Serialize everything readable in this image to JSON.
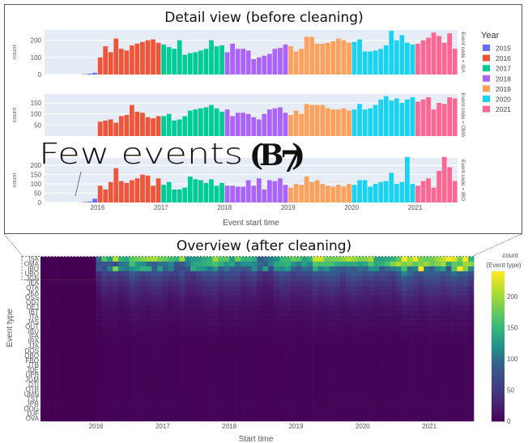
{
  "detail_title": "Detail view (before cleaning)",
  "overview_title": "Overview (after cleaning)",
  "annotation": {
    "text": "Few events",
    "label": "B",
    "sub": "7"
  },
  "chart_data": [
    {
      "type": "bar",
      "title": "Detail view (before cleaning)",
      "xlabel": "Event start time",
      "x_tick_labels": [
        "2016",
        "2017",
        "2018",
        "2019",
        "2020",
        "2021"
      ],
      "legend": {
        "title": "Year",
        "placement": "right",
        "entries": [
          {
            "name": "2015",
            "color": "#636efa"
          },
          {
            "name": "2016",
            "color": "#ef553b"
          },
          {
            "name": "2017",
            "color": "#00cc96"
          },
          {
            "name": "2018",
            "color": "#ab63fa"
          },
          {
            "name": "2019",
            "color": "#ffa15a"
          },
          {
            "name": "2020",
            "color": "#19d3f3"
          },
          {
            "name": "2021",
            "color": "#ff6692"
          }
        ]
      },
      "panels": [
        {
          "facet_label": "Event code = ISA",
          "ylabel": "count",
          "ylim": [
            0,
            260
          ],
          "y_ticks": [
            "0",
            "100",
            "200"
          ],
          "values": [
            0,
            0,
            0,
            0,
            0,
            0,
            0,
            2,
            5,
            10,
            100,
            165,
            130,
            210,
            150,
            140,
            170,
            180,
            190,
            200,
            205,
            185,
            175,
            160,
            150,
            200,
            115,
            125,
            130,
            140,
            150,
            200,
            165,
            170,
            130,
            180,
            150,
            150,
            140,
            90,
            100,
            110,
            120,
            150,
            155,
            175,
            165,
            135,
            150,
            220,
            220,
            180,
            180,
            185,
            195,
            210,
            200,
            185,
            190,
            205,
            135,
            135,
            140,
            150,
            170,
            255,
            200,
            230,
            185,
            175,
            180,
            200,
            215,
            245,
            225,
            185,
            240,
            150
          ]
        },
        {
          "facet_label": "Event code = OMA",
          "ylabel": "count",
          "ylim": [
            0,
            190
          ],
          "y_ticks": [
            "50",
            "100",
            "150"
          ],
          "values": [
            0,
            0,
            0,
            0,
            0,
            0,
            0,
            0,
            0,
            0,
            65,
            70,
            75,
            60,
            90,
            95,
            140,
            110,
            105,
            85,
            80,
            90,
            90,
            100,
            70,
            75,
            90,
            115,
            120,
            125,
            130,
            140,
            125,
            110,
            120,
            90,
            105,
            105,
            100,
            85,
            75,
            100,
            120,
            125,
            130,
            105,
            95,
            115,
            100,
            145,
            140,
            140,
            140,
            125,
            120,
            120,
            125,
            115,
            120,
            145,
            120,
            125,
            140,
            165,
            180,
            160,
            170,
            150,
            165,
            175,
            155,
            165,
            175,
            120,
            150,
            145,
            175,
            170
          ]
        },
        {
          "facet_label": "Event code = IBO",
          "ylabel": "count",
          "ylim": [
            0,
            240
          ],
          "y_ticks": [
            "0",
            "50",
            "100",
            "150",
            "200"
          ],
          "values": [
            0,
            0,
            0,
            0,
            0,
            0,
            0,
            2,
            5,
            20,
            90,
            70,
            110,
            185,
            115,
            105,
            120,
            130,
            150,
            145,
            90,
            130,
            95,
            110,
            70,
            70,
            80,
            140,
            125,
            120,
            105,
            125,
            90,
            105,
            90,
            90,
            85,
            85,
            120,
            90,
            130,
            70,
            120,
            115,
            130,
            95,
            80,
            100,
            95,
            140,
            110,
            120,
            100,
            90,
            85,
            95,
            85,
            100,
            95,
            120,
            120,
            85,
            100,
            110,
            115,
            160,
            100,
            110,
            245,
            100,
            90,
            115,
            130,
            80,
            170,
            245,
            190,
            115
          ]
        }
      ]
    },
    {
      "type": "heatmap",
      "title": "Overview (after cleaning)",
      "xlabel": "Start time",
      "ylabel": "Event type",
      "x_tick_labels": [
        "2016",
        "2017",
        "2018",
        "2019",
        "2020",
        "2021"
      ],
      "y_categories": [
        "ISA",
        "OMA",
        "IBO",
        "UBO",
        "JGN",
        "IEA",
        "OTA",
        "JKA",
        "OSS",
        "ODJ",
        "OEJ",
        "IBT",
        "ITA",
        "JAS",
        "OUT",
        "IBU",
        "IFA",
        "IRA",
        "JJA",
        "DOS",
        "QBO",
        "FBO",
        "JTB",
        "JDE",
        "UPB",
        "JGM",
        "DTI",
        "OTB",
        "UMN",
        "TST",
        "JPR",
        "DOG",
        "DJF",
        "OVA"
      ],
      "colorbar": {
        "title": "count (Event type)",
        "ticks": [
          "0",
          "50",
          "100",
          "150",
          "200"
        ],
        "range": [
          0,
          240
        ],
        "colorscale": "Viridis"
      }
    }
  ]
}
